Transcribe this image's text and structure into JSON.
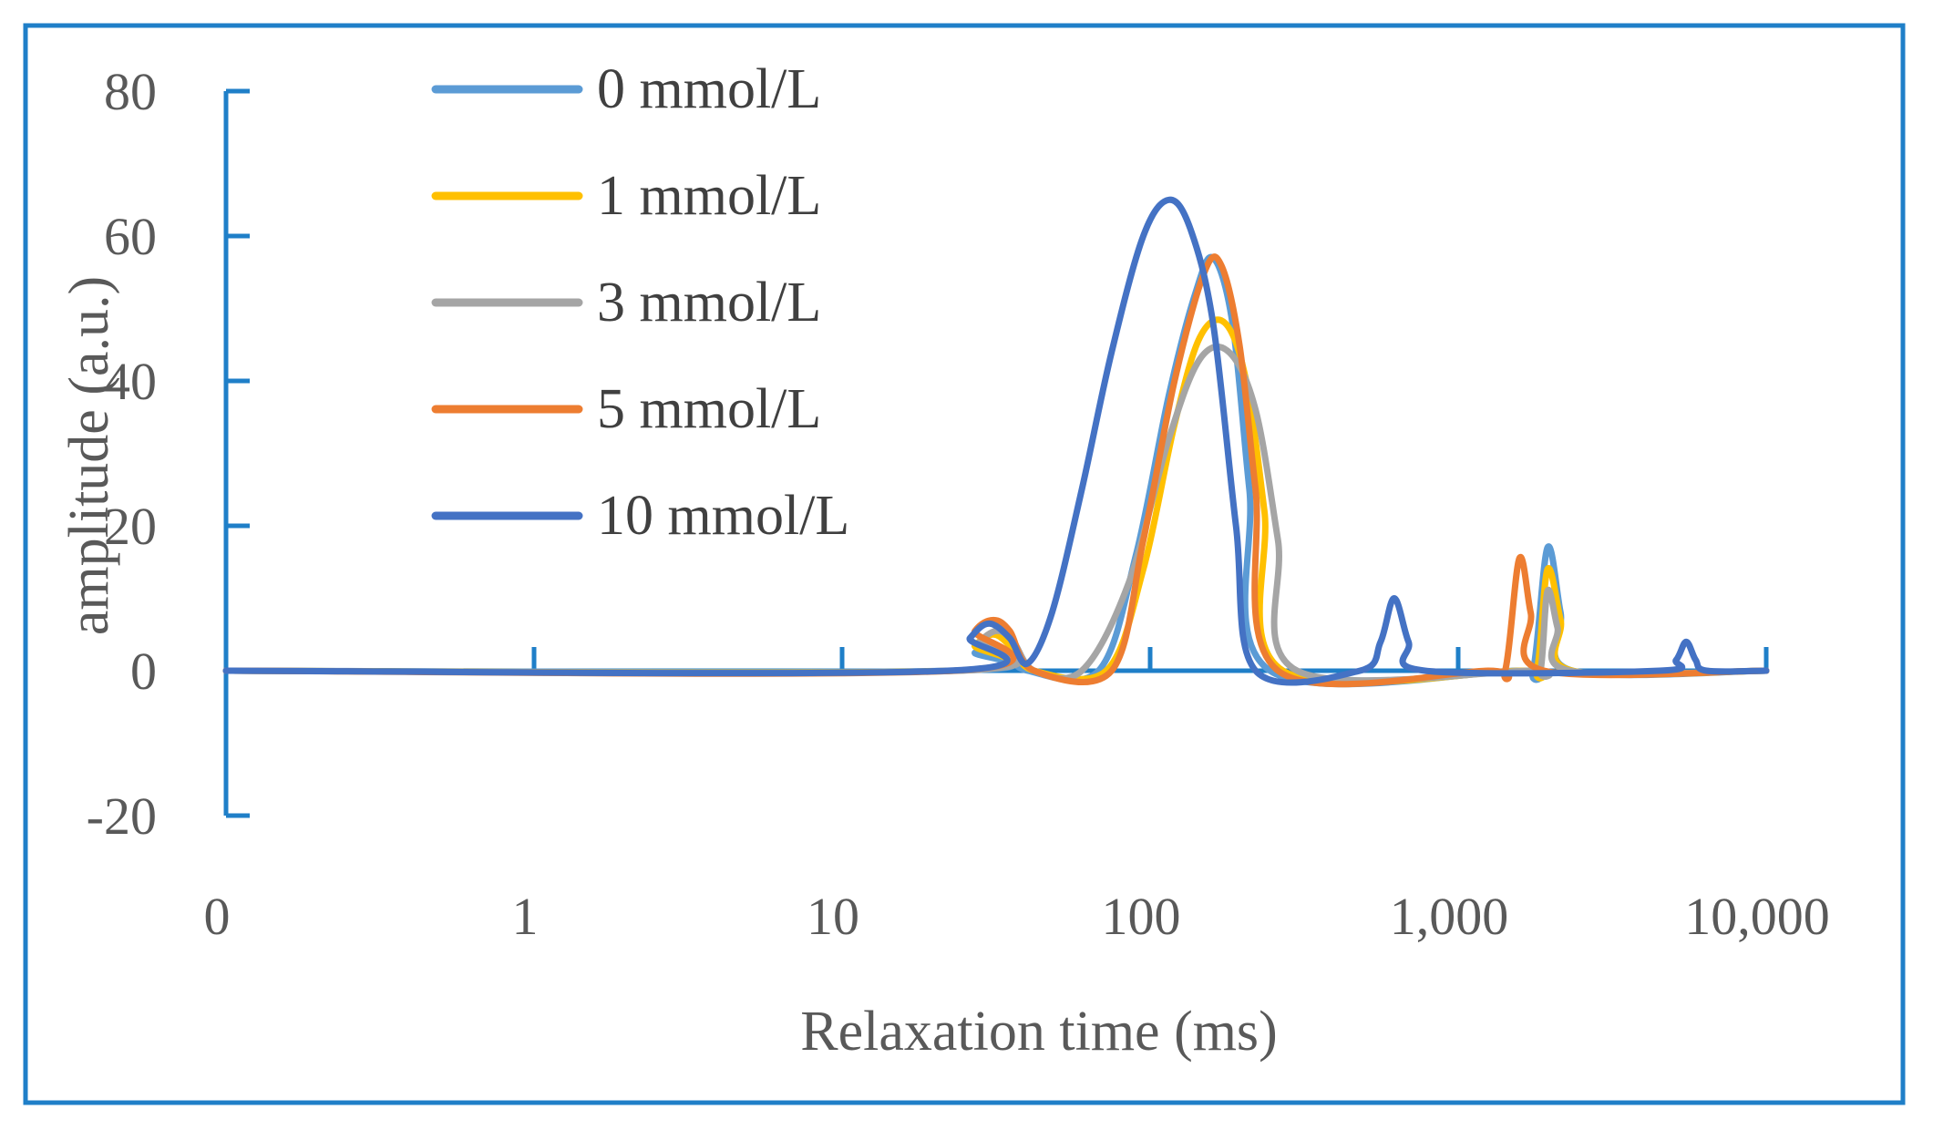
{
  "chart_data": {
    "type": "line",
    "title": "",
    "xlabel": "Relaxation time (ms)",
    "ylabel": "amplitude (a.u.)",
    "xscale": "log",
    "x_tick_labels": [
      "0",
      "1",
      "10",
      "100",
      "1,000",
      "10,000"
    ],
    "x_tick_values": [
      0.1,
      1,
      10,
      100,
      1000,
      10000
    ],
    "y_ticks": [
      -20,
      0,
      20,
      40,
      60,
      80
    ],
    "y_tick_labels": [
      "-20",
      "0",
      "20",
      "40",
      "60",
      "80"
    ],
    "xlim": [
      0.1,
      10000
    ],
    "ylim": [
      -20,
      80
    ],
    "grid": false,
    "legend_position": "top-left",
    "border_color": "#1f7fc8",
    "series": [
      {
        "name": "0 mmol/L",
        "color": "#5b9bd5",
        "x": [
          0.1,
          23,
          27,
          30,
          34,
          40,
          68,
          90,
          115,
          140,
          160,
          185,
          210,
          245,
          1550,
          1750,
          1950,
          2150,
          2350,
          10000
        ],
        "y": [
          0,
          0,
          2.5,
          3.3,
          2.5,
          0,
          0,
          16,
          38,
          52,
          57,
          48,
          25,
          0,
          0,
          0,
          17,
          8,
          0,
          0
        ]
      },
      {
        "name": "1 mmol/L",
        "color": "#ffc000",
        "x": [
          0.1,
          23,
          27,
          31,
          35,
          42,
          72,
          95,
          120,
          145,
          175,
          205,
          235,
          270,
          1600,
          1800,
          1950,
          2150,
          2350,
          10000
        ],
        "y": [
          0,
          0,
          3.5,
          5,
          3.5,
          0,
          0,
          14,
          34,
          46,
          48,
          40,
          22,
          0,
          0,
          0,
          14,
          7,
          0,
          0
        ]
      },
      {
        "name": "3 mmol/L",
        "color": "#a5a5a5",
        "x": [
          0.1,
          24,
          28,
          32,
          36,
          42,
          60,
          85,
          115,
          145,
          180,
          220,
          260,
          300,
          1700,
          1850,
          1950,
          2100,
          2300,
          10000
        ],
        "y": [
          0,
          0,
          4,
          5.5,
          4,
          0,
          0,
          12,
          32,
          43,
          44,
          36,
          18,
          0,
          0,
          0,
          11,
          6,
          0,
          0
        ]
      },
      {
        "name": "5 mmol/L",
        "color": "#ed7d31",
        "x": [
          0.1,
          23,
          27,
          31,
          35,
          42,
          75,
          95,
          120,
          150,
          170,
          195,
          220,
          260,
          1250,
          1420,
          1580,
          1720,
          1900,
          10000
        ],
        "y": [
          0,
          0,
          5.5,
          7,
          5.5,
          0,
          0,
          18,
          40,
          55,
          56,
          45,
          25,
          0,
          0,
          0,
          15.5,
          8,
          0,
          0
        ]
      },
      {
        "name": "10 mmol/L",
        "color": "#4472c4",
        "x": [
          0.1,
          22,
          26,
          30,
          35,
          40,
          48,
          60,
          75,
          95,
          115,
          135,
          160,
          190,
          220,
          480,
          560,
          620,
          690,
          780,
          4500,
          5100,
          5500,
          5900,
          6400,
          10000
        ],
        "y": [
          0,
          0,
          4.5,
          6.5,
          4.5,
          1,
          8,
          25,
          44,
          60,
          65,
          61,
          48,
          20,
          0,
          0,
          4,
          10,
          4,
          0,
          0,
          1.5,
          4,
          1.5,
          0,
          0
        ]
      }
    ]
  }
}
